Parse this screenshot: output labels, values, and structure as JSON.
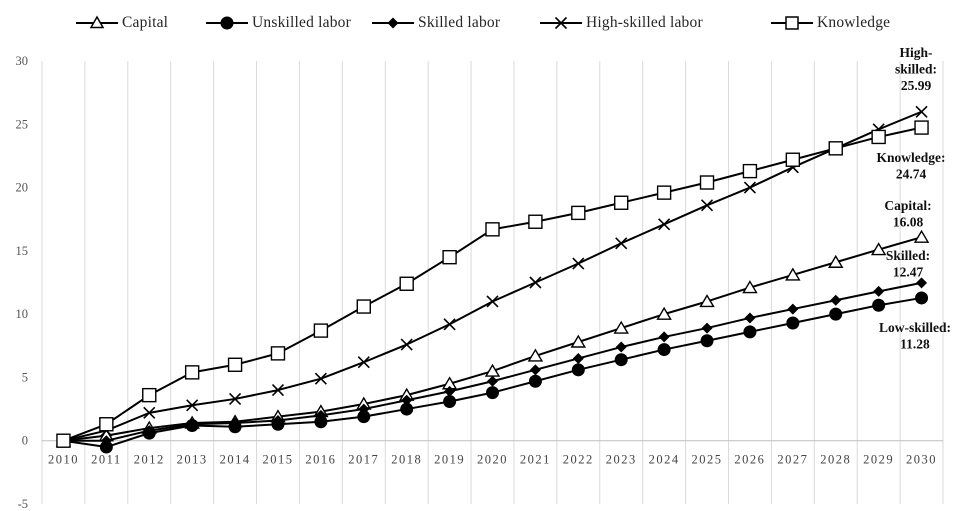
{
  "chart_data": {
    "type": "line",
    "x": [
      "2010",
      "2011",
      "2012",
      "2013",
      "2014",
      "2015",
      "2016",
      "2017",
      "2018",
      "2019",
      "2020",
      "2021",
      "2022",
      "2023",
      "2024",
      "2025",
      "2026",
      "2027",
      "2028",
      "2029",
      "2030"
    ],
    "ylim": [
      -5,
      30
    ],
    "yticks": [
      -5,
      0,
      5,
      10,
      15,
      20,
      25,
      30
    ],
    "grid": "vertical",
    "legend_position": "top",
    "series": [
      {
        "name": "Capital",
        "marker": "triangle-open",
        "values": [
          0,
          0.4,
          1.0,
          1.4,
          1.5,
          1.9,
          2.3,
          2.9,
          3.6,
          4.5,
          5.5,
          6.7,
          7.8,
          8.9,
          10.0,
          11.0,
          12.1,
          13.1,
          14.1,
          15.1,
          16.08
        ]
      },
      {
        "name": "Unskilled labor",
        "marker": "circle-filled",
        "values": [
          0,
          -0.5,
          0.6,
          1.2,
          1.1,
          1.3,
          1.5,
          1.9,
          2.5,
          3.1,
          3.8,
          4.7,
          5.6,
          6.4,
          7.2,
          7.9,
          8.6,
          9.3,
          10.0,
          10.7,
          11.28
        ]
      },
      {
        "name": "Skilled labor",
        "marker": "diamond-filled",
        "values": [
          0,
          0.0,
          0.8,
          1.3,
          1.4,
          1.6,
          2.0,
          2.5,
          3.2,
          3.9,
          4.7,
          5.6,
          6.5,
          7.4,
          8.2,
          8.9,
          9.7,
          10.4,
          11.1,
          11.8,
          12.47
        ]
      },
      {
        "name": "High-skilled labor",
        "marker": "x",
        "values": [
          0,
          0.8,
          2.2,
          2.8,
          3.3,
          4.0,
          4.9,
          6.2,
          7.6,
          9.2,
          11.0,
          12.5,
          14.0,
          15.6,
          17.1,
          18.6,
          20.0,
          21.6,
          23.1,
          24.6,
          25.99
        ]
      },
      {
        "name": "Knowledge",
        "marker": "square-open",
        "values": [
          0,
          1.3,
          3.6,
          5.4,
          6.0,
          6.9,
          8.7,
          10.6,
          12.4,
          14.5,
          16.7,
          17.3,
          18.0,
          18.8,
          19.6,
          20.4,
          21.3,
          22.2,
          23.1,
          24.0,
          24.74
        ]
      }
    ],
    "annotations": [
      {
        "lines": [
          "High-",
          "skilled:",
          "25.99"
        ]
      },
      {
        "lines": [
          "Knowledge:",
          "24.74"
        ]
      },
      {
        "lines": [
          "Capital:",
          "16.08"
        ]
      },
      {
        "lines": [
          "Skilled:",
          "12.47"
        ]
      },
      {
        "lines": [
          "Low-skilled:",
          "11.28"
        ]
      }
    ]
  }
}
